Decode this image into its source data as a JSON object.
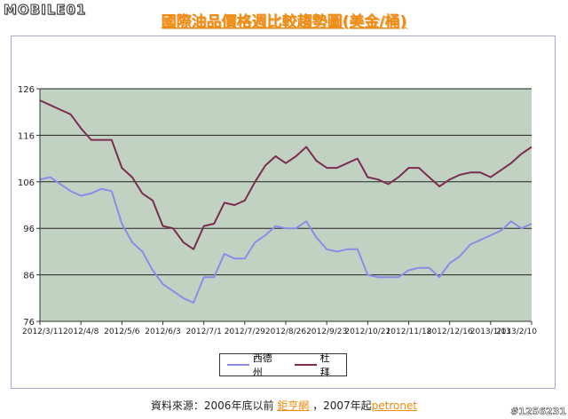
{
  "header": {
    "logo": "MOBILE01",
    "title": "國際油品價格週比較趨勢圖(美金/桶)"
  },
  "footer": {
    "prefix": "資料來源：2006年底以前",
    "link1": "鉅亨網",
    "mid": "，2007年起",
    "link2": "petronet"
  },
  "watermark": "#1256231",
  "colors": {
    "west_texas": "#8c8ce8",
    "dubai": "#7a2d4f",
    "panel_bg": "#c2d2c2",
    "title": "#f08a10"
  },
  "chart_data": {
    "type": "line",
    "title": "",
    "xlabel": "",
    "ylabel": "",
    "ylim": [
      76,
      126
    ],
    "yticks": [
      76,
      86,
      96,
      106,
      116,
      126
    ],
    "grid": "horizontal",
    "legend_position": "bottom",
    "x_tick_labels": [
      "2012/3/11",
      "2012/4/8",
      "2012/5/6",
      "2012/6/3",
      "2012/7/1",
      "2012/7/29",
      "2012/8/26",
      "2012/9/23",
      "2012/10/21",
      "2012/11/18",
      "2012/12/16",
      "2013/1/13",
      "2013/2/10"
    ],
    "series": [
      {
        "name": "西德州",
        "values": [
          106.5,
          107,
          105.5,
          104,
          103,
          103.5,
          104.5,
          104,
          97,
          93,
          91,
          87,
          84,
          82.5,
          81,
          80,
          85.5,
          85.5,
          90.5,
          89.5,
          89.5,
          93,
          94.5,
          96.5,
          96,
          96,
          97.5,
          94,
          91.5,
          91,
          91.5,
          91.5,
          86,
          85.5,
          85.5,
          85.5,
          87,
          87.5,
          87.5,
          85.5,
          88.5,
          90,
          92.5,
          93.5,
          94.5,
          95.5,
          97.5,
          96,
          97
        ]
      },
      {
        "name": "杜拜",
        "values": [
          123.5,
          122.5,
          121.5,
          120.5,
          117.5,
          115,
          115,
          115,
          109,
          107,
          103.5,
          102,
          96.5,
          96,
          93,
          91.5,
          96.5,
          97,
          101.5,
          101,
          102,
          106,
          109.5,
          111.5,
          110,
          111.5,
          113.5,
          110.5,
          109,
          109,
          110,
          111,
          107,
          106.5,
          105.5,
          107,
          109,
          109,
          107,
          105,
          106.5,
          107.5,
          108,
          108,
          107,
          108.5,
          110,
          112,
          113.5
        ]
      }
    ]
  }
}
